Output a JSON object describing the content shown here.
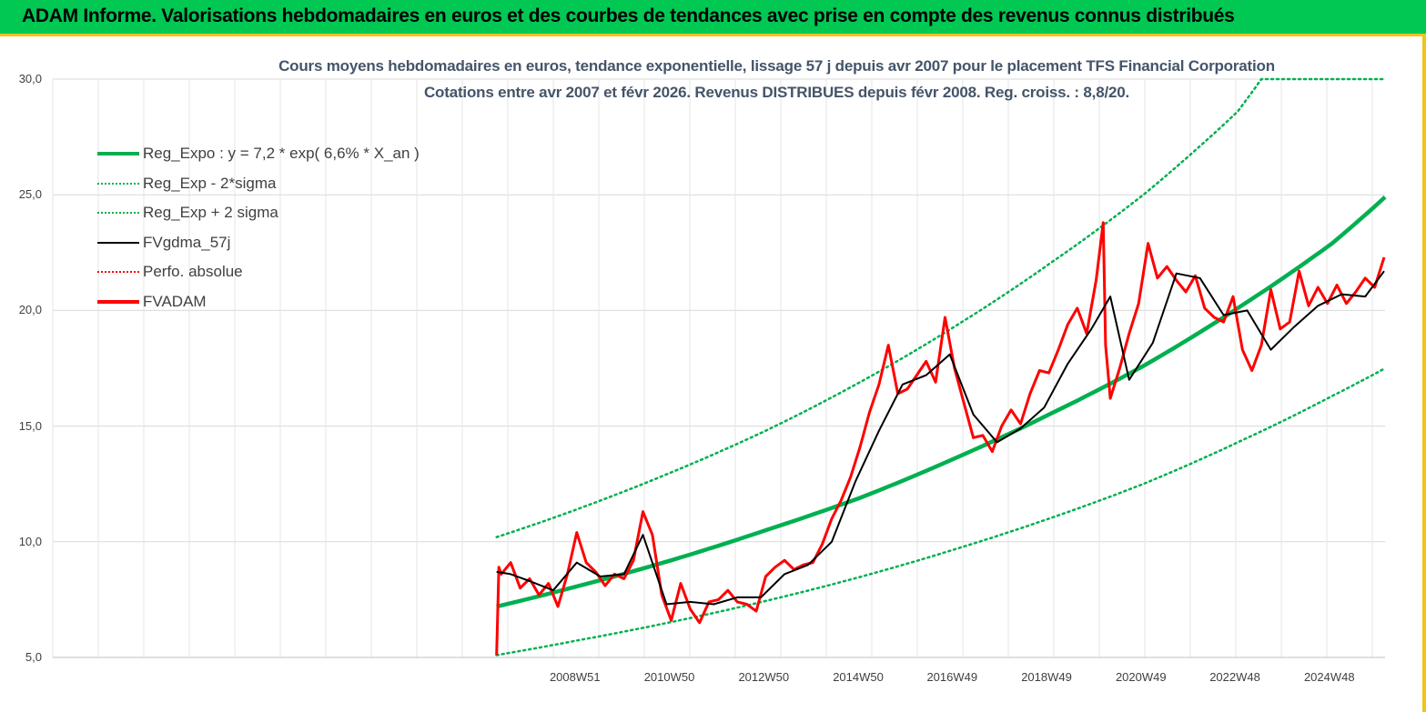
{
  "banner": {
    "title": "ADAM Informe. Valorisations hebdomadaires en euros et des courbes de tendances avec prise en compte des revenus connus distribués"
  },
  "colors": {
    "banner_bg": "#00c853",
    "banner_border": "#f0c419",
    "title_color": "#44546a",
    "reg_expo": "#00b050",
    "fvgdma": "#000000",
    "perfo": "#ff0000",
    "fvadam": "#ff0000",
    "gridline": "#d9d9d9"
  },
  "chart_data": {
    "type": "line",
    "title_line1": "Cours moyens hebdomadaires en euros, tendance exponentielle, lissage 57 j depuis avr 2007 pour le placement TFS Financial Corporation",
    "title_line2": "Cotations entre avr 2007 et févr 2026. Revenus DISTRIBUES depuis févr 2008. Reg. croiss. : 8,8/20.",
    "ylim": [
      5,
      30
    ],
    "yticks": [
      "5,0",
      "10,0",
      "15,0",
      "20,0",
      "25,0",
      "30,0"
    ],
    "xticks": [
      "2008W51",
      "2010W50",
      "2012W50",
      "2014W50",
      "2016W49",
      "2018W49",
      "2020W49",
      "2022W48",
      "2024W48"
    ],
    "xtick_years": [
      2008.96,
      2010.96,
      2012.96,
      2014.96,
      2016.95,
      2018.95,
      2020.95,
      2022.94,
      2024.94
    ],
    "x_start_year": 2007.3,
    "x_end_year": 2026.12,
    "grid": true,
    "legend_position": "top-left",
    "legend": [
      {
        "label": "Reg_Expo : y = 7,2 * exp( 6,6% *  X_an )",
        "style": "solid-thick",
        "color": "#00b050"
      },
      {
        "label": "Reg_Exp - 2*sigma",
        "style": "dotted",
        "color": "#00b050"
      },
      {
        "label": "Reg_Exp + 2 sigma",
        "style": "dotted",
        "color": "#00b050"
      },
      {
        "label": "FVgdma_57j",
        "style": "solid",
        "color": "#000000"
      },
      {
        "label": "Perfo. absolue",
        "style": "dotted",
        "color": "#ff0000"
      },
      {
        "label": "FVADAM",
        "style": "solid-thick",
        "color": "#ff0000"
      }
    ],
    "series": [
      {
        "name": "Reg_Expo : y = 7,2 * exp( 6,6% *  X_an )",
        "x": [
          2007.3,
          2009,
          2011,
          2013,
          2015,
          2017,
          2019,
          2021,
          2023,
          2025,
          2026.12
        ],
        "values": [
          7.2,
          8.07,
          9.2,
          10.5,
          11.9,
          13.6,
          15.5,
          17.6,
          20.1,
          22.9,
          24.9
        ]
      },
      {
        "name": "Reg_Exp - 2*sigma",
        "x": [
          2007.3,
          2009,
          2011,
          2013,
          2015,
          2017,
          2019,
          2021,
          2023,
          2025,
          2026.12
        ],
        "values": [
          5.1,
          5.73,
          6.53,
          7.44,
          8.48,
          9.67,
          11.0,
          12.5,
          14.3,
          16.3,
          17.5
        ]
      },
      {
        "name": "Reg_Exp + 2 sigma",
        "x": [
          2007.3,
          2009,
          2011,
          2013,
          2015,
          2017,
          2019,
          2021,
          2023,
          2023.5,
          2026.12
        ],
        "values": [
          10.2,
          11.4,
          13.0,
          14.8,
          16.9,
          19.3,
          22.0,
          25.0,
          28.6,
          30.0,
          30.0
        ]
      },
      {
        "name": "FVgdma_57j",
        "x": [
          2007.3,
          2007.6,
          2008.0,
          2008.5,
          2009.0,
          2009.5,
          2010.0,
          2010.4,
          2010.9,
          2011.4,
          2011.9,
          2012.4,
          2012.9,
          2013.4,
          2013.9,
          2014.4,
          2014.9,
          2015.4,
          2015.9,
          2016.4,
          2016.9,
          2017.4,
          2017.9,
          2018.4,
          2018.9,
          2019.4,
          2019.9,
          2020.3,
          2020.7,
          2021.2,
          2021.7,
          2022.2,
          2022.7,
          2023.2,
          2023.7,
          2024.2,
          2024.7,
          2025.2,
          2025.7,
          2026.1
        ],
        "values": [
          8.7,
          8.6,
          8.3,
          7.9,
          9.1,
          8.5,
          8.6,
          10.3,
          7.3,
          7.4,
          7.3,
          7.6,
          7.6,
          8.6,
          9.0,
          10.0,
          12.6,
          14.8,
          16.8,
          17.2,
          18.1,
          15.5,
          14.3,
          14.9,
          15.8,
          17.7,
          19.2,
          20.6,
          17.0,
          18.6,
          21.6,
          21.4,
          19.8,
          20.0,
          18.3,
          19.3,
          20.2,
          20.7,
          20.6,
          21.7
        ]
      },
      {
        "name": "FVADAM",
        "x": [
          2007.3,
          2007.35,
          2007.4,
          2007.6,
          2007.8,
          2008.0,
          2008.2,
          2008.4,
          2008.6,
          2008.8,
          2009.0,
          2009.2,
          2009.4,
          2009.6,
          2009.8,
          2010.0,
          2010.2,
          2010.4,
          2010.6,
          2010.8,
          2011.0,
          2011.2,
          2011.4,
          2011.6,
          2011.8,
          2012.0,
          2012.2,
          2012.4,
          2012.6,
          2012.8,
          2013.0,
          2013.2,
          2013.4,
          2013.6,
          2013.8,
          2014.0,
          2014.2,
          2014.4,
          2014.6,
          2014.8,
          2015.0,
          2015.2,
          2015.4,
          2015.6,
          2015.8,
          2016.0,
          2016.2,
          2016.4,
          2016.6,
          2016.8,
          2017.0,
          2017.2,
          2017.4,
          2017.6,
          2017.8,
          2018.0,
          2018.2,
          2018.4,
          2018.6,
          2018.8,
          2019.0,
          2019.2,
          2019.4,
          2019.6,
          2019.8,
          2020.0,
          2020.15,
          2020.2,
          2020.3,
          2020.5,
          2020.7,
          2020.9,
          2021.1,
          2021.3,
          2021.5,
          2021.7,
          2021.9,
          2022.1,
          2022.3,
          2022.5,
          2022.7,
          2022.9,
          2023.1,
          2023.3,
          2023.5,
          2023.7,
          2023.9,
          2024.1,
          2024.3,
          2024.5,
          2024.7,
          2024.9,
          2025.1,
          2025.3,
          2025.5,
          2025.7,
          2025.9,
          2026.1
        ],
        "values": [
          5.1,
          8.9,
          8.6,
          9.1,
          8.0,
          8.4,
          7.7,
          8.2,
          7.2,
          8.6,
          10.4,
          9.1,
          8.7,
          8.1,
          8.6,
          8.4,
          9.2,
          11.3,
          10.3,
          7.7,
          6.6,
          8.2,
          7.1,
          6.5,
          7.4,
          7.5,
          7.9,
          7.4,
          7.3,
          7.0,
          8.5,
          8.9,
          9.2,
          8.8,
          9.0,
          9.1,
          9.9,
          11.0,
          11.8,
          12.8,
          14.1,
          15.6,
          16.8,
          18.5,
          16.4,
          16.6,
          17.2,
          17.8,
          16.9,
          19.7,
          17.5,
          16.0,
          14.5,
          14.6,
          13.9,
          15.0,
          15.7,
          15.1,
          16.4,
          17.4,
          17.3,
          18.3,
          19.4,
          20.1,
          19.0,
          21.3,
          23.8,
          18.5,
          16.2,
          17.5,
          19.0,
          20.3,
          22.9,
          21.4,
          21.9,
          21.3,
          20.8,
          21.5,
          20.1,
          19.7,
          19.5,
          20.6,
          18.3,
          17.4,
          18.5,
          20.9,
          19.2,
          19.5,
          21.7,
          20.2,
          21.0,
          20.3,
          21.1,
          20.3,
          20.8,
          21.4,
          21.0,
          22.3
        ]
      }
    ]
  }
}
